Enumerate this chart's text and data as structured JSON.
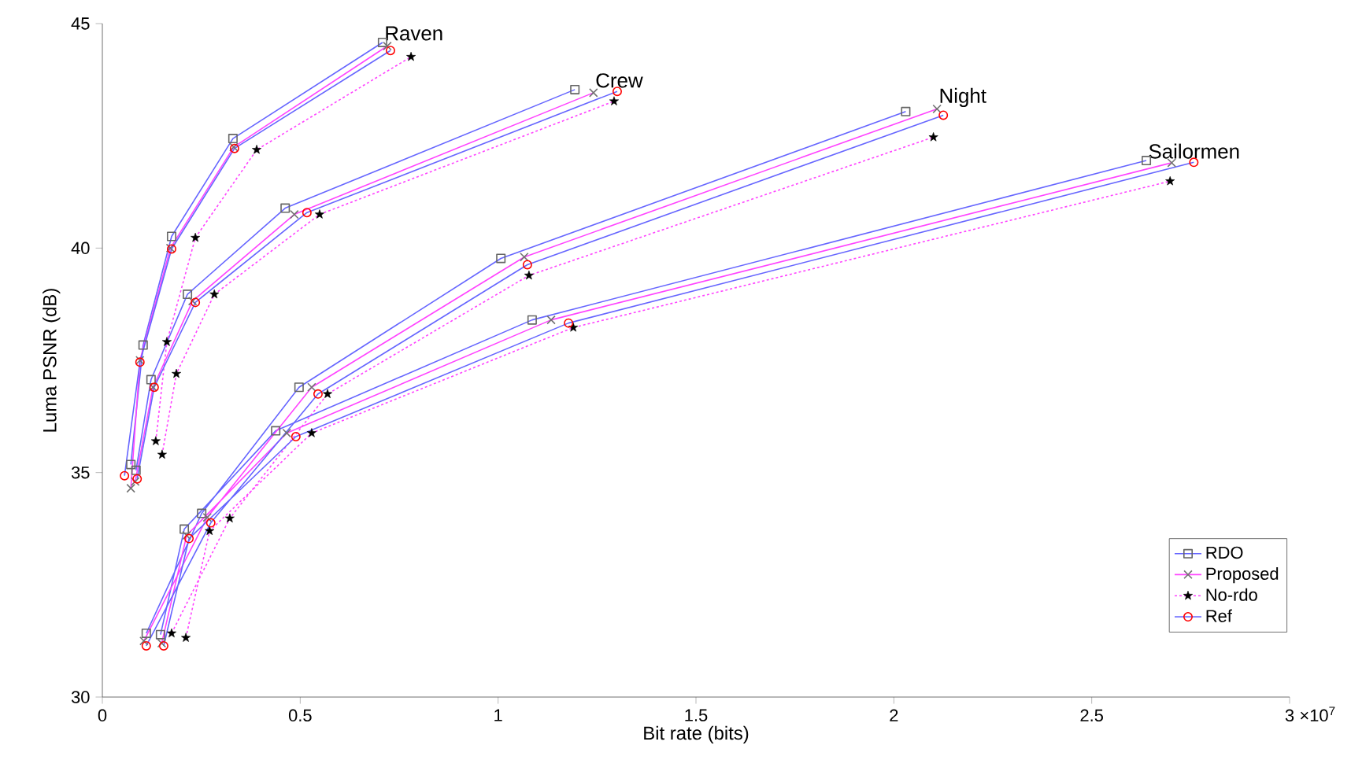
{
  "chart_data": {
    "type": "line",
    "xlabel": "Bit rate (bits)",
    "ylabel": "Luma PSNR (dB)",
    "xlim": [
      0,
      3
    ],
    "ylim": [
      30,
      45
    ],
    "xticks": [
      0,
      0.5,
      1,
      1.5,
      2,
      2.5,
      3
    ],
    "yticks": [
      30,
      35,
      40,
      45
    ],
    "grid": false,
    "legend": "bottom right",
    "series": [
      {
        "name": "RDO",
        "color": "#6666ff",
        "marker": "square",
        "line_style": "solid",
        "x": [
          0.072,
          0.103,
          0.175,
          0.33,
          0.708,
          null,
          0.085,
          0.123,
          0.215,
          0.462,
          1.194,
          null,
          0.111,
          0.251,
          0.497,
          1.007,
          2.03,
          null,
          0.147,
          0.207,
          0.438,
          1.086,
          2.638
        ],
        "values": [
          35.18,
          37.84,
          40.26,
          42.44,
          44.58,
          null,
          35.05,
          37.07,
          38.97,
          40.89,
          43.53,
          null,
          31.42,
          34.09,
          36.9,
          39.77,
          43.04,
          null,
          31.39,
          33.74,
          35.93,
          38.4,
          41.95
        ]
      },
      {
        "name": "Proposed",
        "color": "#ff44ff",
        "marker": "cross",
        "line_style": "solid",
        "x": [
          0.072,
          0.095,
          0.172,
          0.332,
          0.72,
          null,
          0.083,
          0.128,
          0.228,
          0.485,
          1.241,
          null,
          0.105,
          0.265,
          0.529,
          1.066,
          2.109,
          null,
          0.15,
          0.213,
          0.466,
          1.134,
          2.702
        ],
        "values": [
          34.65,
          37.5,
          40.0,
          42.25,
          44.5,
          null,
          34.8,
          36.9,
          38.82,
          40.75,
          43.46,
          null,
          31.25,
          34.0,
          36.9,
          39.8,
          43.1,
          null,
          31.2,
          33.6,
          35.88,
          38.4,
          41.9
        ]
      },
      {
        "name": "No-rdo",
        "color": "#ff44ff",
        "marker": "star",
        "line_style": "dotted",
        "x": [
          0.135,
          0.163,
          0.235,
          0.39,
          0.78,
          null,
          0.151,
          0.187,
          0.283,
          0.549,
          1.293,
          null,
          0.175,
          0.322,
          0.569,
          1.078,
          2.1,
          null,
          0.211,
          0.271,
          0.529,
          1.19,
          2.698
        ],
        "values": [
          35.7,
          37.91,
          40.23,
          42.19,
          44.26,
          null,
          35.4,
          37.2,
          38.97,
          40.75,
          43.27,
          null,
          31.42,
          33.98,
          36.75,
          39.39,
          42.47,
          null,
          31.32,
          33.7,
          35.88,
          38.23,
          41.49
        ]
      },
      {
        "name": "Ref",
        "color": "#6666ff",
        "marker": "circle",
        "line_style": "solid",
        "x": [
          0.056,
          0.095,
          0.175,
          0.334,
          0.728,
          null,
          0.088,
          0.131,
          0.235,
          0.517,
          1.301,
          null,
          0.111,
          0.274,
          0.545,
          1.074,
          2.125,
          null,
          0.155,
          0.219,
          0.489,
          1.178,
          2.758
        ],
        "values": [
          34.93,
          37.46,
          39.98,
          42.22,
          44.4,
          null,
          34.86,
          36.9,
          38.79,
          40.79,
          43.49,
          null,
          31.14,
          33.88,
          36.75,
          39.63,
          42.96,
          null,
          31.14,
          33.53,
          35.8,
          38.33,
          41.91
        ]
      }
    ],
    "annotations": [
      {
        "text": "Raven",
        "x": 0.708,
        "y": 44.58
      },
      {
        "text": "Crew",
        "x": 1.241,
        "y": 43.53
      },
      {
        "text": "Night",
        "x": 2.109,
        "y": 43.1
      },
      {
        "text": "Sailormen",
        "x": 2.638,
        "y": 41.95
      },
      "×10$^{7}$"
    ]
  }
}
